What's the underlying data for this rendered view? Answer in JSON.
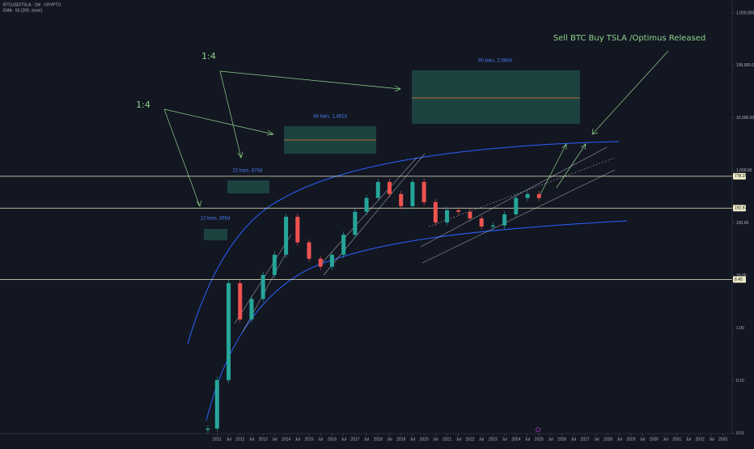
{
  "header": {
    "symbol": "BTCUSD/TSLA · 1W · CRYPTO",
    "indicator": "EMA · 50 (200, close)"
  },
  "chart_data": {
    "type": "candlestick",
    "x": [
      2010.6,
      2011,
      2011.5,
      2012,
      2012.5,
      2013,
      2013.5,
      2014,
      2014.5,
      2015,
      2015.5,
      2016,
      2016.5,
      2017,
      2017.5,
      2018,
      2018.5,
      2019,
      2019.5,
      2020,
      2020.5,
      2021,
      2021.5,
      2022,
      2022.5,
      2023,
      2023.5,
      2024,
      2024.5,
      2025
    ],
    "values": [
      0.0123,
      0.103,
      7.2,
      1.47,
      3.6,
      10.3,
      25,
      132,
      43,
      21,
      14.8,
      25,
      60,
      164,
      300,
      606,
      357,
      210,
      606,
      251,
      103,
      176,
      164,
      123,
      86,
      90,
      147,
      300,
      357,
      300
    ],
    "up_color": "#26a69a",
    "down_color": "#ef5350",
    "log_scale": true,
    "xlim": [
      2001.56,
      2033.4
    ],
    "xticks": [
      2011,
      {
        "value": 2011.5,
        "label": "Jul"
      },
      2012,
      {
        "value": 2012.5,
        "label": "Jul"
      },
      2013,
      {
        "value": 2013.5,
        "label": "Jul"
      },
      2014,
      {
        "value": 2014.5,
        "label": "Jul"
      },
      2015,
      {
        "value": 2015.5,
        "label": "Jul"
      },
      2016,
      {
        "value": 2016.5,
        "label": "Jul"
      },
      2017,
      {
        "value": 2017.5,
        "label": "Jul"
      },
      2018,
      {
        "value": 2018.5,
        "label": "Jul"
      },
      2019,
      {
        "value": 2019.5,
        "label": "Jul"
      },
      2020,
      {
        "value": 2020.5,
        "label": "Jul"
      },
      2021,
      {
        "value": 2021.5,
        "label": "Jul"
      },
      2022,
      {
        "value": 2022.5,
        "label": "Jul"
      },
      2023,
      {
        "value": 2023.5,
        "label": "Jul"
      },
      2024,
      {
        "value": 2024.5,
        "label": "Jul"
      },
      2025,
      {
        "value": 2025.5,
        "label": "Jul"
      },
      2026,
      {
        "value": 2026.5,
        "label": "Jul"
      },
      2027,
      {
        "value": 2027.5,
        "label": "Jul"
      },
      2028,
      {
        "value": 2028.5,
        "label": "Jul"
      },
      2029,
      {
        "value": 2029.5,
        "label": "Jul"
      },
      2030,
      {
        "value": 2030.5,
        "label": "Jul"
      },
      2031,
      {
        "value": 2031.5,
        "label": "Jul"
      },
      2032,
      {
        "value": 2032.5,
        "label": "Jul"
      },
      2033
    ],
    "ylim": [
      0.006,
      1760000
    ],
    "yticks": [
      {
        "value": 0.01,
        "label": "0.01"
      },
      {
        "value": 0.1,
        "label": "0.10"
      },
      {
        "value": 1,
        "label": "1.00"
      },
      {
        "value": 10,
        "label": "10.00"
      },
      {
        "value": 100,
        "label": "100.00"
      },
      {
        "value": 1000,
        "label": "1,000.00"
      },
      {
        "value": 10000,
        "label": "10,000.00"
      },
      {
        "value": 100000,
        "label": "100,000.00"
      },
      {
        "value": 1000000,
        "label": "1,000,000.00"
      }
    ],
    "grid": false,
    "price_lines": [
      778.25,
      192.87,
      8.45
    ],
    "annotations": {
      "ratio_labels": [
        "1:4",
        "1:4"
      ],
      "note": "Sell BTC Buy TSLA /Optimus Released",
      "ranges": [
        "12 bars, 365d",
        "22 bars, 670d",
        "48 bars, 1,461d",
        "90 bars, 2,660d"
      ]
    }
  }
}
